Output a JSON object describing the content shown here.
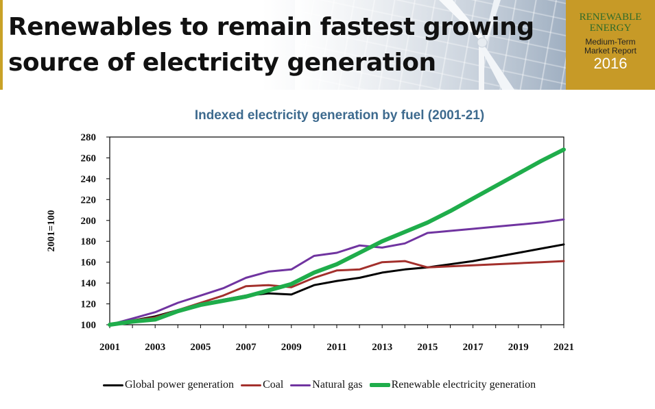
{
  "slide": {
    "title_line1": "Renewables to remain fastest growing",
    "title_line2": "source of electricity generation",
    "accent_color": "#c79a27"
  },
  "badge": {
    "line1": "RENEWABLE",
    "line2": "ENERGY",
    "line3": "Medium-Term",
    "line4": "Market Report",
    "year": "2016"
  },
  "chart_data": {
    "type": "line",
    "title": "Indexed electricity generation by fuel (2001-21)",
    "xlabel": "",
    "ylabel": "2001=100",
    "x": [
      2001,
      2002,
      2003,
      2004,
      2005,
      2006,
      2007,
      2008,
      2009,
      2010,
      2011,
      2012,
      2013,
      2014,
      2015,
      2016,
      2017,
      2018,
      2019,
      2020,
      2021
    ],
    "xticks": [
      "2001",
      "2003",
      "2005",
      "2007",
      "2009",
      "2011",
      "2013",
      "2015",
      "2017",
      "2019",
      "2021"
    ],
    "yticks": [
      "100",
      "120",
      "140",
      "160",
      "180",
      "200",
      "220",
      "240",
      "260",
      "280"
    ],
    "ylim": [
      100,
      280
    ],
    "grid": false,
    "legend_position": "bottom",
    "series": [
      {
        "name": "Global power generation",
        "color": "#000000",
        "values": [
          100,
          104,
          108,
          114,
          120,
          124,
          128,
          130,
          129,
          138,
          142,
          145,
          150,
          153,
          155,
          158,
          161,
          165,
          169,
          173,
          177
        ]
      },
      {
        "name": "Coal",
        "color": "#a3302c",
        "values": [
          100,
          104,
          107,
          114,
          121,
          128,
          137,
          138,
          136,
          145,
          152,
          153,
          160,
          161,
          155,
          156,
          157,
          158,
          159,
          160,
          161
        ]
      },
      {
        "name": "Natural gas",
        "color": "#7034a0",
        "values": [
          100,
          106,
          112,
          121,
          128,
          135,
          145,
          151,
          153,
          166,
          169,
          176,
          174,
          178,
          188,
          190,
          192,
          194,
          196,
          198,
          201
        ]
      },
      {
        "name": "Renewable electricity generation",
        "color": "#1fad4b",
        "values": [
          100,
          103,
          105,
          113,
          119,
          123,
          127,
          133,
          139,
          150,
          158,
          169,
          180,
          189,
          198,
          209,
          221,
          233,
          245,
          257,
          268
        ]
      }
    ]
  }
}
